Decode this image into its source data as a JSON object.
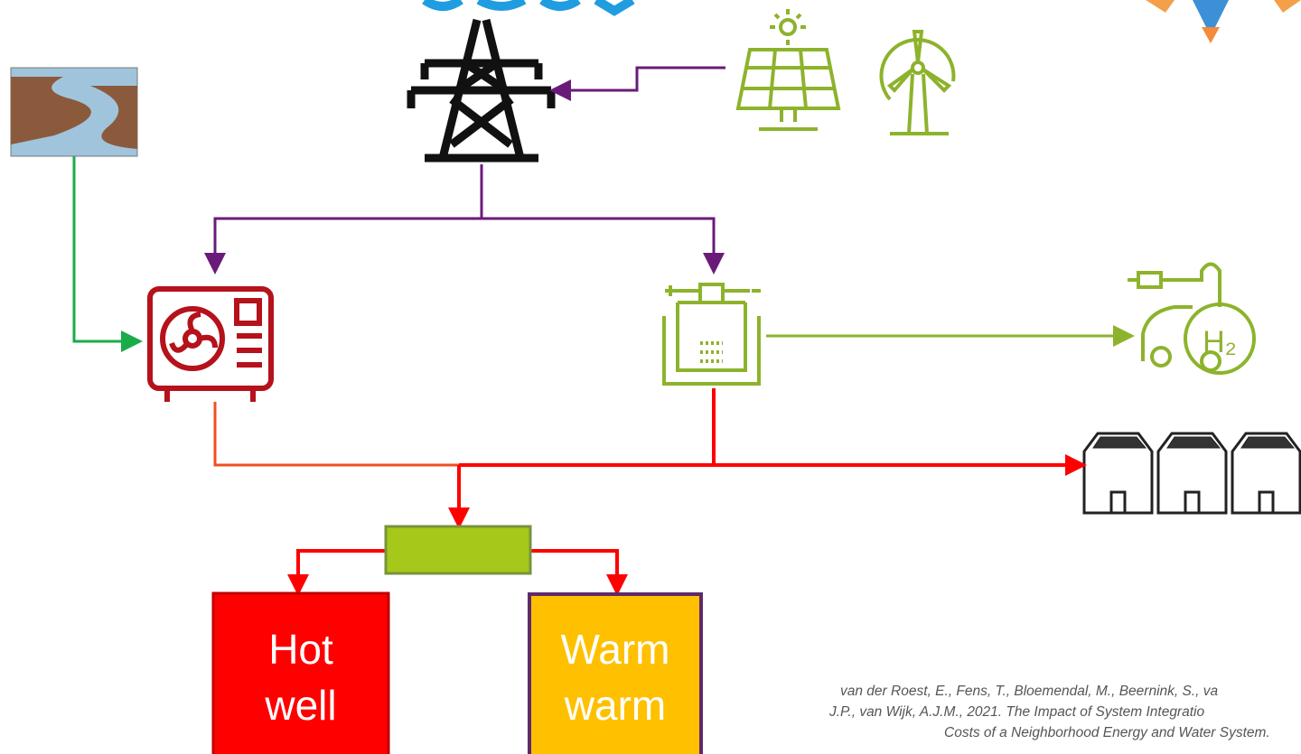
{
  "nodes": {
    "hot_well": {
      "label": [
        "Hot",
        "well"
      ]
    },
    "warm_well": {
      "label": [
        "Warm",
        "warm"
      ]
    }
  },
  "citation": [
    "van der Roest, E., Fens, T., Bloemendal, M., Beernink, S., va",
    "J.P., van Wijk, A.J.M., 2021. The Impact of System Integratio",
    "Costs of a Neighborhood Energy and Water System."
  ]
}
